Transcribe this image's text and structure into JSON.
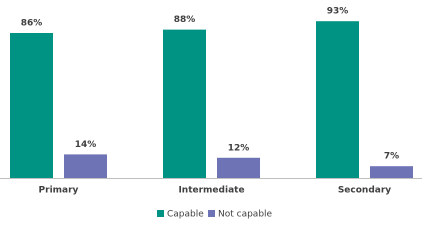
{
  "chart_data": {
    "type": "bar",
    "categories": [
      "Primary",
      "Intermediate",
      "Secondary"
    ],
    "series": [
      {
        "name": "Capable",
        "color": "#009383",
        "values": [
          86,
          88,
          93
        ],
        "value_labels": [
          "86%",
          "88%",
          "93%"
        ]
      },
      {
        "name": "Not capable",
        "color": "#6e73b5",
        "values": [
          14,
          12,
          7
        ],
        "value_labels": [
          "14%",
          "12%",
          "7%"
        ]
      }
    ],
    "legend": "bottom"
  }
}
